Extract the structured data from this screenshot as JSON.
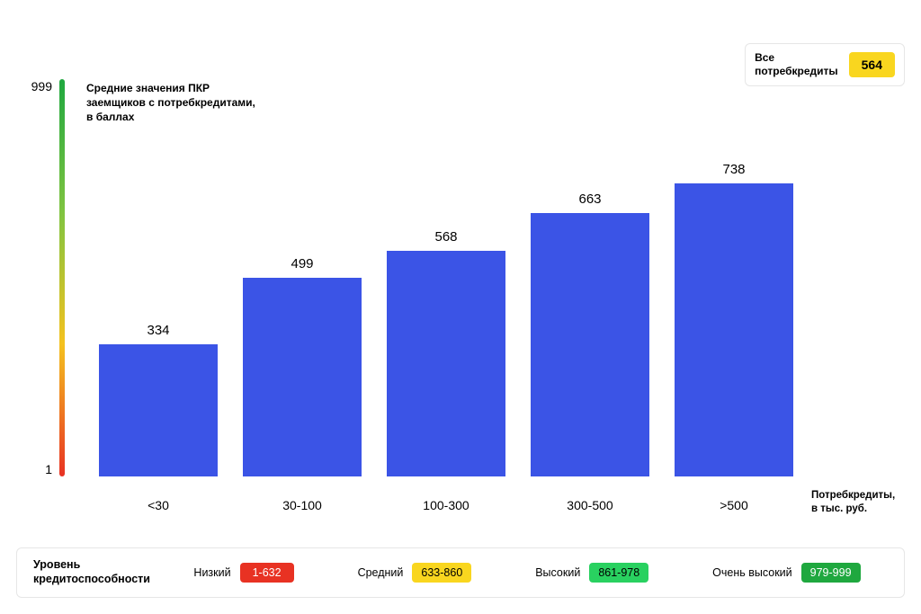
{
  "chart": {
    "type": "bar",
    "y_axis": {
      "max_label": "999",
      "min_label": "1",
      "min": 1,
      "max": 999,
      "title": "Средние значения ПКР\nзаемщиков с потребкредитами,\nв баллах",
      "gradient_stops": [
        "#e83223",
        "#f4c21f",
        "#7fc441",
        "#1fa83f"
      ]
    },
    "x_axis": {
      "title": "Потребкредиты,\nв тыс. руб."
    },
    "bar_color": "#3b54e6",
    "value_fontsize": 15,
    "label_fontsize": 14,
    "categories": [
      "<30",
      "30-100",
      "100-300",
      "300-500",
      ">500"
    ],
    "values": [
      334,
      499,
      568,
      663,
      738
    ],
    "background_color": "#ffffff"
  },
  "callout": {
    "label": "Все\nпотребкредиты",
    "value": "564",
    "badge_bg": "#f9d61f",
    "badge_text_color": "#000000"
  },
  "legend": {
    "title": "Уровень\nкредитоспособности",
    "items": [
      {
        "label": "Низкий",
        "range": "1-632",
        "bg": "#e83223",
        "fg": "#ffffff"
      },
      {
        "label": "Средний",
        "range": "633-860",
        "bg": "#f9d61f",
        "fg": "#000000"
      },
      {
        "label": "Высокий",
        "range": "861-978",
        "bg": "#29d160",
        "fg": "#000000"
      },
      {
        "label": "Очень высокий",
        "range": "979-999",
        "bg": "#1fa83f",
        "fg": "#ffffff"
      }
    ]
  }
}
